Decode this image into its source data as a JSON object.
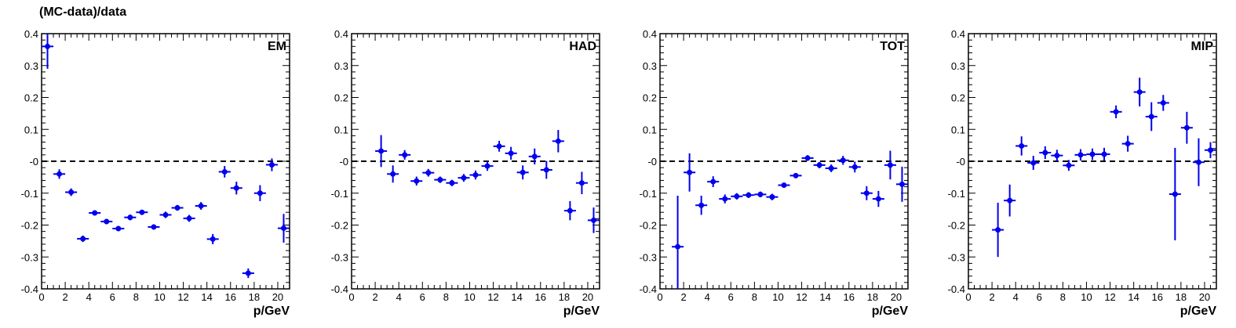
{
  "figure": {
    "ylabel": "(MC-data)/data"
  },
  "chart_data": [
    {
      "type": "scatter",
      "title": "EM",
      "xlabel": "p/GeV",
      "ylabel": "(MC-data)/data",
      "xlim": [
        0,
        21
      ],
      "ylim": [
        -0.4,
        0.4
      ],
      "xticks": [
        "0",
        "2",
        "4",
        "6",
        "8",
        "10",
        "12",
        "14",
        "16",
        "18",
        "20"
      ],
      "yticks": [
        "-0.4",
        "-0.3",
        "-0.2",
        "-0.1",
        "-0",
        "0.1",
        "0.2",
        "0.3",
        "0.4"
      ],
      "reference_line": 0,
      "x": [
        0.5,
        1.5,
        2.5,
        3.5,
        4.5,
        5.5,
        6.5,
        7.5,
        8.5,
        9.5,
        10.5,
        11.5,
        12.5,
        13.5,
        14.5,
        15.5,
        16.5,
        17.5,
        18.5,
        19.5,
        20.5
      ],
      "y": [
        0.36,
        -0.04,
        -0.097,
        -0.243,
        -0.162,
        -0.189,
        -0.211,
        -0.176,
        -0.16,
        -0.206,
        -0.168,
        -0.146,
        -0.179,
        -0.14,
        -0.244,
        -0.033,
        -0.084,
        -0.351,
        -0.1,
        -0.011,
        -0.21
      ],
      "yerr": [
        0.07,
        0.015,
        0.012,
        0.01,
        0.008,
        0.008,
        0.007,
        0.009,
        0.008,
        0.008,
        0.01,
        0.009,
        0.011,
        0.012,
        0.016,
        0.018,
        0.02,
        0.015,
        0.025,
        0.02,
        0.045
      ]
    },
    {
      "type": "scatter",
      "title": "HAD",
      "xlabel": "p/GeV",
      "xlim": [
        0,
        21
      ],
      "ylim": [
        -0.4,
        0.4
      ],
      "xticks": [
        "0",
        "2",
        "4",
        "6",
        "8",
        "10",
        "12",
        "14",
        "16",
        "18",
        "20"
      ],
      "yticks": [
        "-0.4",
        "-0.3",
        "-0.2",
        "-0.1",
        "-0",
        "0.1",
        "0.2",
        "0.3",
        "0.4"
      ],
      "reference_line": 0,
      "x": [
        2.5,
        3.5,
        4.5,
        5.5,
        6.5,
        7.5,
        8.5,
        9.5,
        10.5,
        11.5,
        12.5,
        13.5,
        14.5,
        15.5,
        16.5,
        17.5,
        18.5,
        19.5,
        20.5
      ],
      "y": [
        0.032,
        -0.04,
        0.02,
        -0.062,
        -0.036,
        -0.058,
        -0.068,
        -0.052,
        -0.043,
        -0.015,
        0.047,
        0.025,
        -0.035,
        0.015,
        -0.027,
        0.063,
        -0.155,
        -0.068,
        -0.185
      ],
      "yerr": [
        0.05,
        0.027,
        0.015,
        0.014,
        0.012,
        0.01,
        0.01,
        0.012,
        0.014,
        0.015,
        0.017,
        0.02,
        0.022,
        0.025,
        0.028,
        0.035,
        0.03,
        0.035,
        0.04
      ]
    },
    {
      "type": "scatter",
      "title": "TOT",
      "xlabel": "p/GeV",
      "xlim": [
        0,
        21
      ],
      "ylim": [
        -0.4,
        0.4
      ],
      "xticks": [
        "0",
        "2",
        "4",
        "6",
        "8",
        "10",
        "12",
        "14",
        "16",
        "18",
        "20"
      ],
      "yticks": [
        "-0.4",
        "-0.3",
        "-0.2",
        "-0.1",
        "-0",
        "0.1",
        "0.2",
        "0.3",
        "0.4"
      ],
      "reference_line": 0,
      "x": [
        1.5,
        2.5,
        3.5,
        4.5,
        5.5,
        6.5,
        7.5,
        8.5,
        9.5,
        10.5,
        11.5,
        12.5,
        13.5,
        14.5,
        15.5,
        16.5,
        17.5,
        18.5,
        19.5,
        20.5
      ],
      "y": [
        -0.268,
        -0.035,
        -0.138,
        -0.064,
        -0.118,
        -0.11,
        -0.106,
        -0.104,
        -0.112,
        -0.075,
        -0.045,
        0.01,
        -0.012,
        -0.022,
        0.003,
        -0.018,
        -0.1,
        -0.118,
        -0.012,
        -0.072
      ],
      "yerr": [
        0.16,
        0.06,
        0.03,
        0.017,
        0.014,
        0.01,
        0.009,
        0.009,
        0.01,
        0.008,
        0.008,
        0.009,
        0.01,
        0.012,
        0.014,
        0.017,
        0.022,
        0.025,
        0.045,
        0.055
      ]
    },
    {
      "type": "scatter",
      "title": "MIP",
      "xlabel": "p/GeV",
      "xlim": [
        0,
        21
      ],
      "ylim": [
        -0.4,
        0.4
      ],
      "xticks": [
        "0",
        "2",
        "4",
        "6",
        "8",
        "10",
        "12",
        "14",
        "16",
        "18",
        "20"
      ],
      "yticks": [
        "-0.4",
        "-0.3",
        "-0.2",
        "-0.1",
        "-0",
        "0.1",
        "0.2",
        "0.3",
        "0.4"
      ],
      "reference_line": 0,
      "x": [
        2.5,
        3.5,
        4.5,
        5.5,
        6.5,
        7.5,
        8.5,
        9.5,
        10.5,
        11.5,
        12.5,
        13.5,
        14.5,
        15.5,
        16.5,
        17.5,
        18.5,
        19.5,
        20.5
      ],
      "y": [
        -0.215,
        -0.123,
        0.048,
        -0.005,
        0.027,
        0.018,
        -0.013,
        0.02,
        0.022,
        0.022,
        0.155,
        0.055,
        0.217,
        0.14,
        0.183,
        -0.103,
        0.105,
        -0.003,
        0.035
      ],
      "yerr": [
        0.085,
        0.05,
        0.03,
        0.022,
        0.02,
        0.018,
        0.017,
        0.018,
        0.018,
        0.02,
        0.02,
        0.025,
        0.045,
        0.045,
        0.025,
        0.145,
        0.05,
        0.075,
        0.025
      ]
    }
  ],
  "colors": {
    "markers": "#0000ee",
    "axes": "#000000",
    "reference_line": "#000000"
  }
}
